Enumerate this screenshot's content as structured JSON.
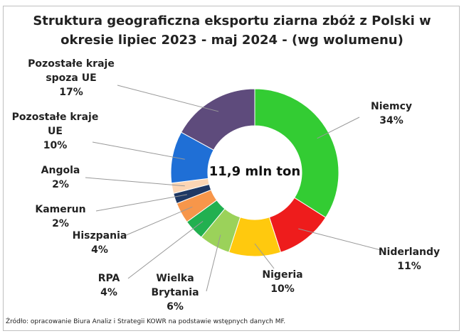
{
  "chart_data": {
    "type": "donut",
    "title": "Struktura geograficzna eksportu ziarna zbóż z Polski w okresie lipiec 2023 - maj 2024 - (wg wolumenu)",
    "categories": [
      "Niemcy",
      "Niderlandy",
      "Nigeria",
      "Wielka Brytania",
      "RPA",
      "Hiszpania",
      "Kamerun",
      "Angola",
      "Pozostałe kraje UE",
      "Pozostałe kraje spoza UE"
    ],
    "values": [
      34,
      11,
      10,
      6,
      4,
      4,
      2,
      2,
      10,
      17
    ],
    "value_labels": [
      "34%",
      "11%",
      "10%",
      "6%",
      "4%",
      "4%",
      "2%",
      "2%",
      "10%",
      "17%"
    ],
    "colors": [
      "#33cc33",
      "#ee1c1c",
      "#ffc90e",
      "#9bd25a",
      "#22b050",
      "#f7964a",
      "#1f3864",
      "#fcd5b4",
      "#1f6fd6",
      "#5e4b7c"
    ],
    "center_label": "11,9 mln ton",
    "source": "Źródło: opracowanie Biura Analiz i Strategii KOWR na podstawie wstępnych danych MF."
  }
}
